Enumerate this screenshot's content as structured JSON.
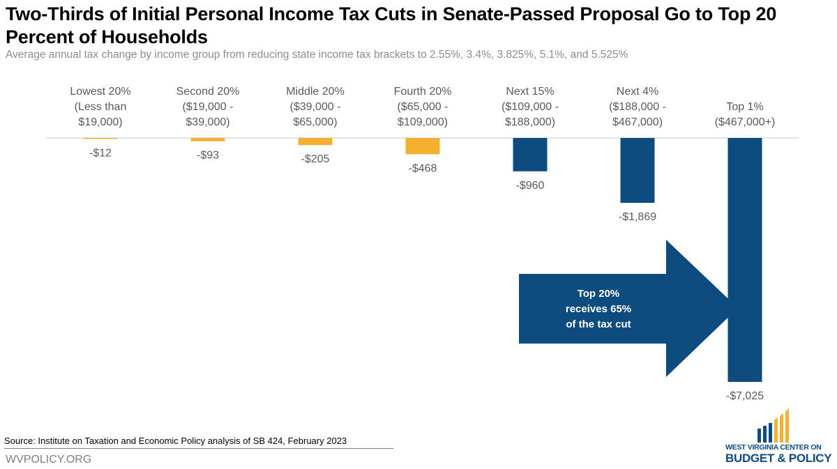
{
  "title": "Two-Thirds of Initial Personal Income Tax Cuts in Senate-Passed Proposal Go to Top 20 Percent of Households",
  "subtitle": "Average annual tax change by income group from reducing state income tax brackets to 2.55%, 3.4%, 3.825%, 5.1%, and 5.525%",
  "chart_data": {
    "type": "bar",
    "title": "Two-Thirds of Initial Personal Income Tax Cuts in Senate-Passed Proposal Go to Top 20 Percent of Households",
    "subtitle": "Average annual tax change by income group from reducing state income tax brackets to 2.55%, 3.4%, 3.825%, 5.1%, and 5.525%",
    "xlabel": "",
    "ylabel": "",
    "ylim": [
      -7025,
      0
    ],
    "grid": false,
    "categories": [
      [
        "Lowest 20%",
        "(Less than",
        "$19,000)"
      ],
      [
        "Second 20%",
        "($19,000 -",
        "$39,000)"
      ],
      [
        "Middle 20%",
        "($39,000 -",
        "$65,000)"
      ],
      [
        "Fourth 20%",
        "($65,000 -",
        "$109,000)"
      ],
      [
        "Next 15%",
        "($109,000 -",
        "$188,000)"
      ],
      [
        "Next 4%",
        "($188,000 -",
        "$467,000)"
      ],
      [
        "Top 1%",
        "($467,000+)"
      ]
    ],
    "values": [
      -12,
      -93,
      -205,
      -468,
      -960,
      -1869,
      -7025
    ],
    "data_labels": [
      "-$12",
      "-$93",
      "-$205",
      "-$468",
      "-$960",
      "-$1,869",
      "-$7,025"
    ],
    "bar_colors": [
      "#f5b031",
      "#f5b031",
      "#f5b031",
      "#f5b031",
      "#0e4c80",
      "#0e4c80",
      "#0e4c80"
    ],
    "annotation": [
      "Top 20%",
      "receives 65%",
      "of the tax cut"
    ]
  },
  "colors": {
    "bottom_groups": "#f5b031",
    "top_groups": "#0e4c80",
    "axis": "#d9d9d9"
  },
  "footer": {
    "source": "Source: Institute on Taxation and Economic Policy analysis of SB 424, February 2023",
    "site": "WVPOLICY.ORG"
  },
  "logo": {
    "line1": "WEST VIRGINIA CENTER ON",
    "line2": "BUDGET & POLICY"
  }
}
